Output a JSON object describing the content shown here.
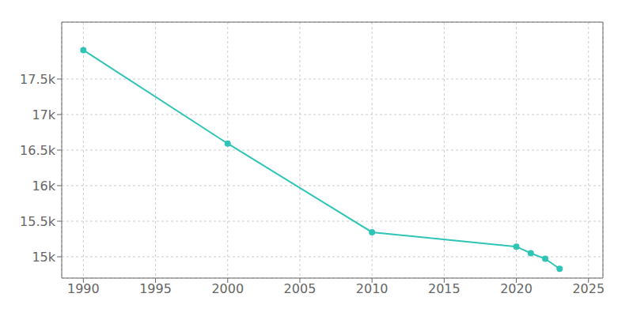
{
  "chart_data": {
    "type": "line",
    "x": [
      1990,
      2000,
      2010,
      2020,
      2021,
      2022,
      2023
    ],
    "values": [
      17906,
      16592,
      15345,
      15143,
      15050,
      14972,
      14830
    ],
    "color": "#2ec4b6",
    "marker": "circle",
    "xlim": [
      1988.5,
      2026
    ],
    "xticks": [
      1990,
      1995,
      2000,
      2005,
      2010,
      2015,
      2020,
      2025
    ],
    "ylim": [
      14700,
      18300
    ],
    "yticks": [
      {
        "value": 15000,
        "label": "15k"
      },
      {
        "value": 15500,
        "label": "15.5k"
      },
      {
        "value": 16000,
        "label": "16k"
      },
      {
        "value": 16500,
        "label": "16.5k"
      },
      {
        "value": 17000,
        "label": "17k"
      },
      {
        "value": 17500,
        "label": "17.5k"
      }
    ],
    "grid": true
  }
}
